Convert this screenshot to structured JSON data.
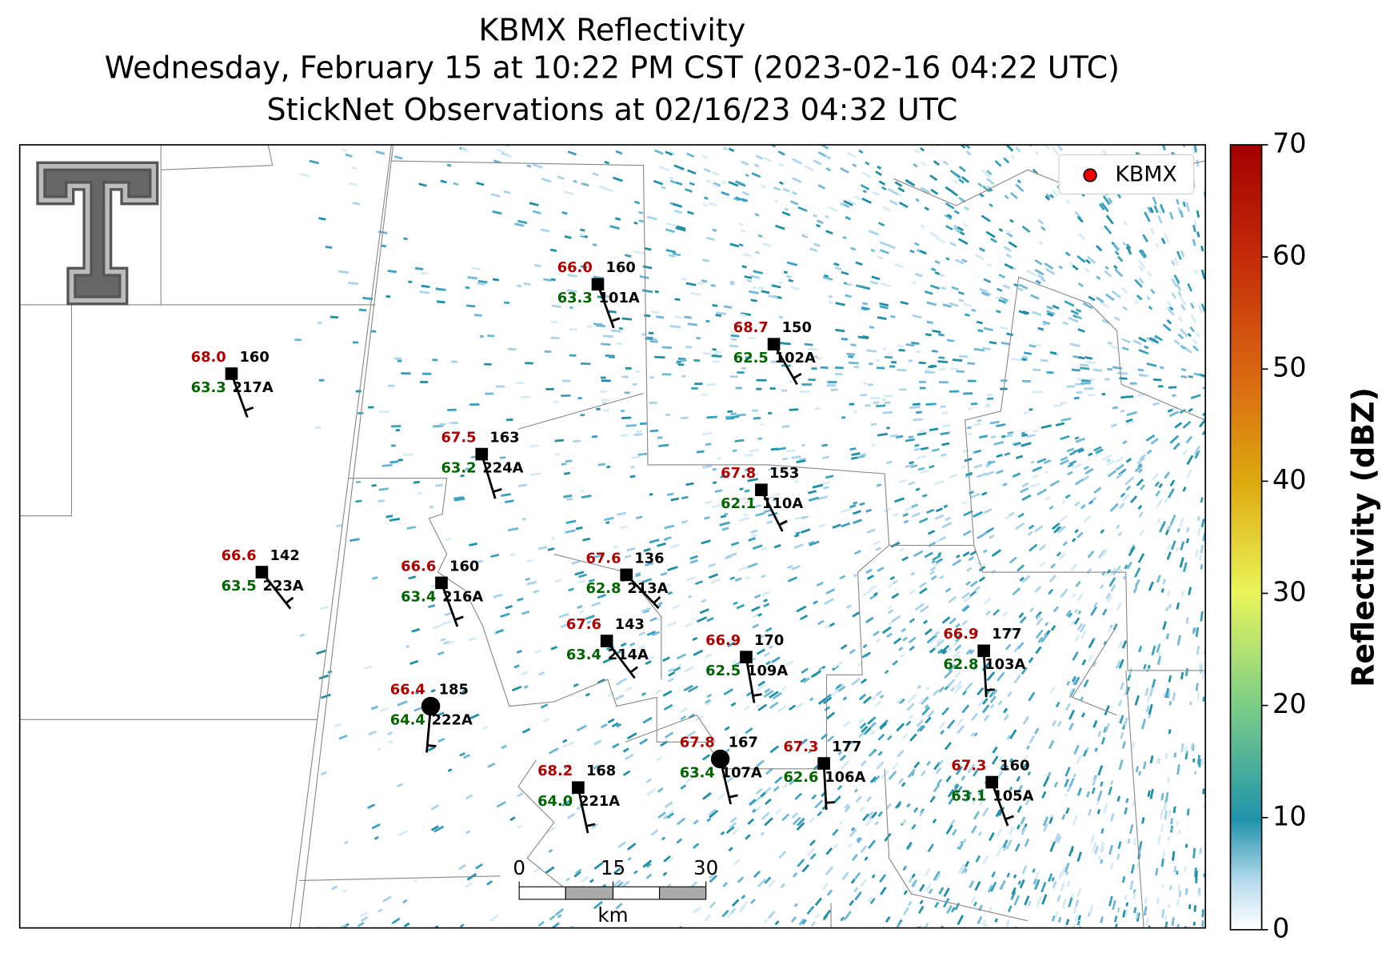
{
  "title": [
    "KBMX Reflectivity",
    "Wednesday, February 15 at 10:22 PM CST (2023-02-16 04:22 UTC)",
    "StickNet Observations at 02/16/23 04:32 UTC"
  ],
  "legend": "KBMX",
  "stations": [
    {
      "id": "101A",
      "temperature": "66.0",
      "dewpoint": "63.3",
      "wind_direction": "160"
    },
    {
      "id": "102A",
      "temperature": "68.7",
      "dewpoint": "62.5",
      "wind_direction": "150"
    },
    {
      "id": "217A",
      "temperature": "68.0",
      "dewpoint": "63.3",
      "wind_direction": "160"
    },
    {
      "id": "224A",
      "temperature": "67.5",
      "dewpoint": "63.2",
      "wind_direction": "163"
    },
    {
      "id": "110A",
      "temperature": "67.8",
      "dewpoint": "62.1",
      "wind_direction": "153"
    },
    {
      "id": "223A",
      "temperature": "66.6",
      "dewpoint": "63.5",
      "wind_direction": "142"
    },
    {
      "id": "216A",
      "temperature": "66.6",
      "dewpoint": "63.4",
      "wind_direction": "160"
    },
    {
      "id": "213A",
      "temperature": "67.6",
      "dewpoint": "62.8",
      "wind_direction": "136"
    },
    {
      "id": "214A",
      "temperature": "67.6",
      "dewpoint": "63.4",
      "wind_direction": "143"
    },
    {
      "id": "109A",
      "temperature": "66.9",
      "dewpoint": "62.5",
      "wind_direction": "170"
    },
    {
      "id": "103A",
      "temperature": "66.9",
      "dewpoint": "62.8",
      "wind_direction": "177"
    },
    {
      "id": "222A",
      "temperature": "66.4",
      "dewpoint": "64.4",
      "wind_direction": "185"
    },
    {
      "id": "107A",
      "temperature": "67.8",
      "dewpoint": "63.4",
      "wind_direction": "167"
    },
    {
      "id": "106A",
      "temperature": "67.3",
      "dewpoint": "62.6",
      "wind_direction": "177"
    },
    {
      "id": "105A",
      "temperature": "67.3",
      "dewpoint": "63.1",
      "wind_direction": "160"
    },
    {
      "id": "221A",
      "temperature": "68.2",
      "dewpoint": "64.0",
      "wind_direction": "168"
    }
  ],
  "scale_bar": {
    "ticks": [
      "0",
      "15",
      "30"
    ],
    "unit": "km"
  },
  "colorbar": {
    "label": "Reflectivity (dBZ)",
    "lim": [
      0,
      70
    ],
    "ticks": [
      0,
      10,
      20,
      30,
      40,
      50,
      60,
      70
    ]
  }
}
